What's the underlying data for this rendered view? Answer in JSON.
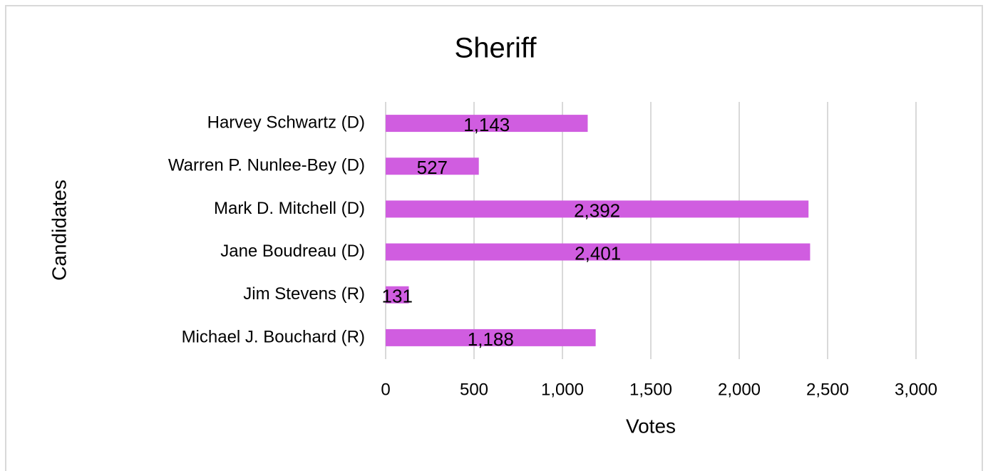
{
  "chart_data": {
    "type": "bar",
    "title": "Sheriff",
    "x_label": "Votes",
    "y_label": "Candidates",
    "categories": [
      "Harvey Schwartz (D)",
      "Warren P. Nunlee-Bey (D)",
      "Mark D. Mitchell (D)",
      "Jane Boudreau (D)",
      "Jim Stevens (R)",
      "Michael J. Bouchard (R)"
    ],
    "values": [
      1143,
      527,
      2392,
      2401,
      131,
      1188
    ],
    "value_labels": [
      "1,143",
      "527",
      "2,392",
      "2,401",
      "131",
      "1,188"
    ],
    "color": "#d05de0",
    "xlim": [
      0,
      3000
    ],
    "xticks": [
      0,
      500,
      {
        "value": 1000,
        "label": "1,000"
      },
      {
        "value": 1500,
        "label": "1,500"
      },
      {
        "value": 2000,
        "label": "2,000"
      },
      {
        "value": 2500,
        "label": "2,500"
      },
      {
        "value": 3000,
        "label": "3,000"
      }
    ],
    "grid": true
  }
}
